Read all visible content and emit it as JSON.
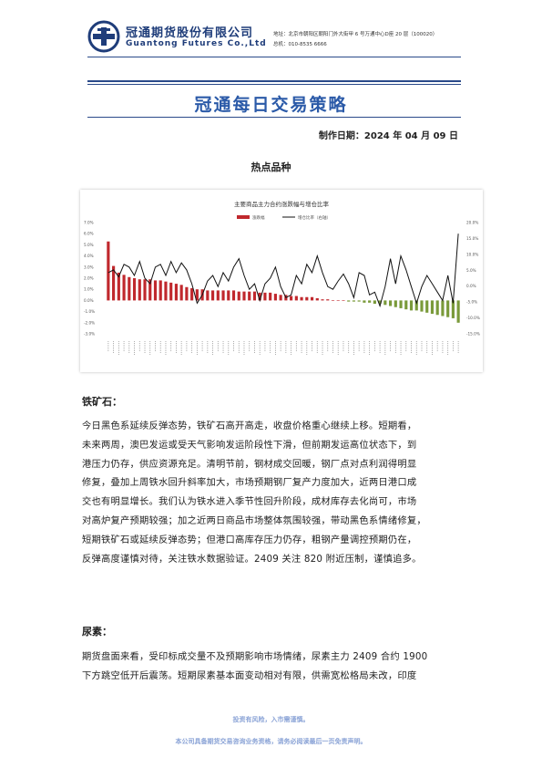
{
  "header": {
    "company_cn": "冠通期货股份有限公司",
    "company_en": "Guantong Futures Co.,Ltd",
    "address": "地址：北京市朝阳区朝阳门外大街甲 6 号万通中心D座 20 层（100020）",
    "phone": "总机：010-8535 6666"
  },
  "title": "冠通每日交易策略",
  "date_line": "制作日期：2024 年 04 月 09 日",
  "section_title": "热点品种",
  "chart_data": {
    "type": "bar",
    "title": "主要商品主力合约涨跌幅与增仓比率",
    "legend": [
      "涨跌幅",
      "增仓比率（右轴）"
    ],
    "left_axis_ticks": [
      "7.0%",
      "6.0%",
      "5.0%",
      "4.0%",
      "3.0%",
      "2.0%",
      "1.0%",
      "0.0%",
      "-1.0%",
      "-2.0%",
      "-3.0%"
    ],
    "right_axis_ticks": [
      "20.0%",
      "15.0%",
      "10.0%",
      "5.0%",
      "0.0%",
      "-5.0%",
      "-10.0%",
      "-15.0%"
    ],
    "ylim_left": [
      -3.0,
      7.0
    ],
    "ylim_right": [
      -20.0,
      20.0
    ],
    "colors": {
      "up": "#c0282d",
      "down": "#7a9a3a",
      "line": "#111111"
    },
    "bar_values": [
      5.3,
      3.1,
      2.5,
      2.3,
      2.1,
      2.0,
      1.9,
      1.9,
      1.9,
      1.8,
      1.8,
      1.7,
      1.6,
      1.5,
      1.4,
      1.2,
      1.1,
      1.0,
      1.0,
      0.9,
      0.9,
      0.9,
      0.9,
      0.9,
      0.9,
      0.8,
      0.8,
      0.8,
      0.8,
      0.7,
      0.7,
      0.7,
      0.6,
      0.5,
      0.5,
      0.4,
      0.4,
      0.3,
      0.3,
      0.3,
      0.2,
      0.1,
      0.1,
      0.0,
      0.0,
      0.0,
      -0.1,
      -0.1,
      -0.1,
      -0.2,
      -0.2,
      -0.3,
      -0.3,
      -0.4,
      -0.5,
      -0.6,
      -0.7,
      -0.8,
      -0.9,
      -0.9,
      -1.0,
      -1.1,
      -1.2,
      -1.3,
      -1.4,
      -1.5,
      -1.6,
      -2.0
    ],
    "line_values": [
      2.0,
      3.0,
      0.5,
      5.0,
      4.0,
      1.0,
      6.0,
      0.0,
      -2.0,
      4.0,
      5.0,
      1.0,
      6.0,
      2.0,
      5.5,
      3.0,
      -2.0,
      -9.0,
      -6.0,
      -1.0,
      1.0,
      -3.0,
      2.0,
      -1.0,
      4.0,
      7.0,
      1.0,
      -4.0,
      -2.0,
      -8.0,
      -2.0,
      0.0,
      4.0,
      -3.0,
      -7.0,
      -6.0,
      1.0,
      -2.0,
      5.0,
      2.0,
      8.0,
      2.0,
      -3.0,
      -4.0,
      -1.0,
      1.5,
      -2.0,
      -7.0,
      2.0,
      1.0,
      -6.0,
      -5.0,
      -10.0,
      -3.0,
      7.0,
      -2.0,
      8.0,
      3.0,
      -3.0,
      -9.0,
      -3.0,
      1.0,
      -2.0,
      -5.0,
      -8.0,
      1.0,
      -9.0,
      16.0
    ]
  },
  "iron_ore": {
    "heading": "铁矿石：",
    "lines": [
      "今日黑色系延续反弹态势，铁矿石高开高走，收盘价格重心继续上移。短期看，",
      "未来两周，澳巴发运或受天气影响发运阶段性下滑，但前期发运高位状态下，到",
      "港压力仍存，供应资源充足。清明节前，钢材成交回暖，钢厂点对点利润得明显",
      "修复，叠加上周铁水回升斜率加大，市场预期钢厂复产力度加大，近两日港口成",
      "交也有明显增长。我们认为铁水进入季节性回升阶段，成材库存去化尚可，市场",
      "对高炉复产预期较强；加之近两日商品市场整体氛围较强，带动黑色系情绪修复，",
      "短期铁矿石或延续反弹态势；但港口高库存压力仍存，粗钢产量调控预期仍在，",
      "反弹高度谨慎对待，关注铁水数据验证。2409 关注 820 附近压制，谨慎追多。"
    ]
  },
  "urea": {
    "heading": "尿素：",
    "lines": [
      "期货盘面来看，受印标成交量不及预期影响市场情绪，尿素主力 2409 合约 1900",
      "下方跳空低开后震荡。短期尿素基本面变动相对有限，供需宽松格局未改，印度"
    ]
  },
  "footer": {
    "risk": "投资有风险，入市需谨慎。",
    "disclaimer": "本公司具备期货交易咨询业务资格，请务必阅读最后一页免责声明。"
  }
}
